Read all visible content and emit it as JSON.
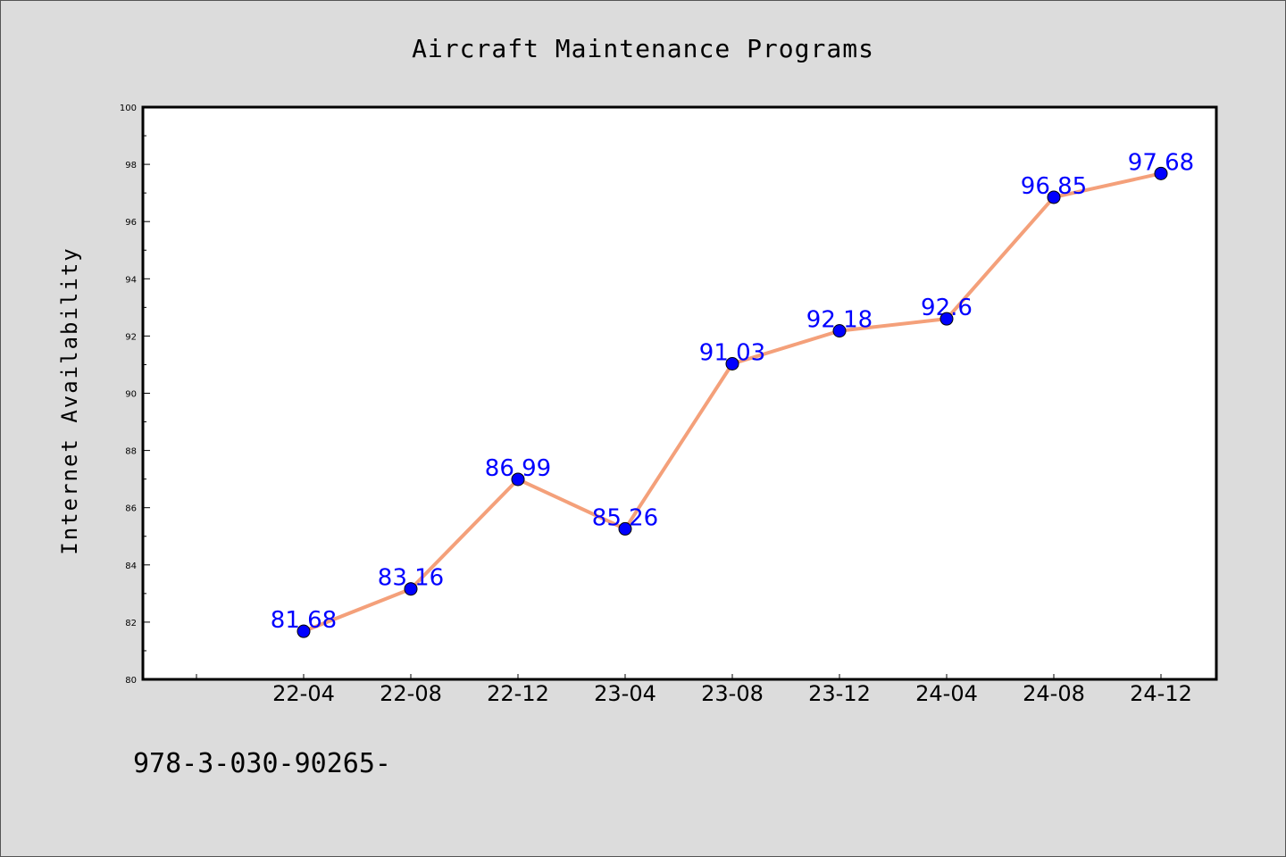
{
  "footer_text": "978-3-030-90265-",
  "chart_data": {
    "type": "line",
    "title": "Aircraft Maintenance Programs",
    "xlabel": "",
    "ylabel": "Internet Availability",
    "categories": [
      "22-04",
      "22-08",
      "22-12",
      "23-04",
      "23-08",
      "23-12",
      "24-04",
      "24-08",
      "24-12"
    ],
    "series": [
      {
        "values": [
          81.68,
          83.16,
          86.99,
          85.26,
          91.03,
          92.18,
          92.6,
          96.85,
          97.68
        ],
        "labels": [
          "81.68",
          "83.16",
          "86.99",
          "85.26",
          "91.03",
          "92.18",
          "92.6",
          "96.85",
          "97.68"
        ],
        "line_color": "#f4a07a",
        "marker_color": "#0000ff"
      }
    ],
    "ylim": [
      80,
      100
    ],
    "yticks": [
      80,
      82,
      84,
      86,
      88,
      90,
      92,
      94,
      96,
      98,
      100
    ],
    "grid": false,
    "legend": "none",
    "data_label_color": "#0000ff",
    "background_color": "#dcdcdc",
    "plot_background_color": "#ffffff"
  }
}
